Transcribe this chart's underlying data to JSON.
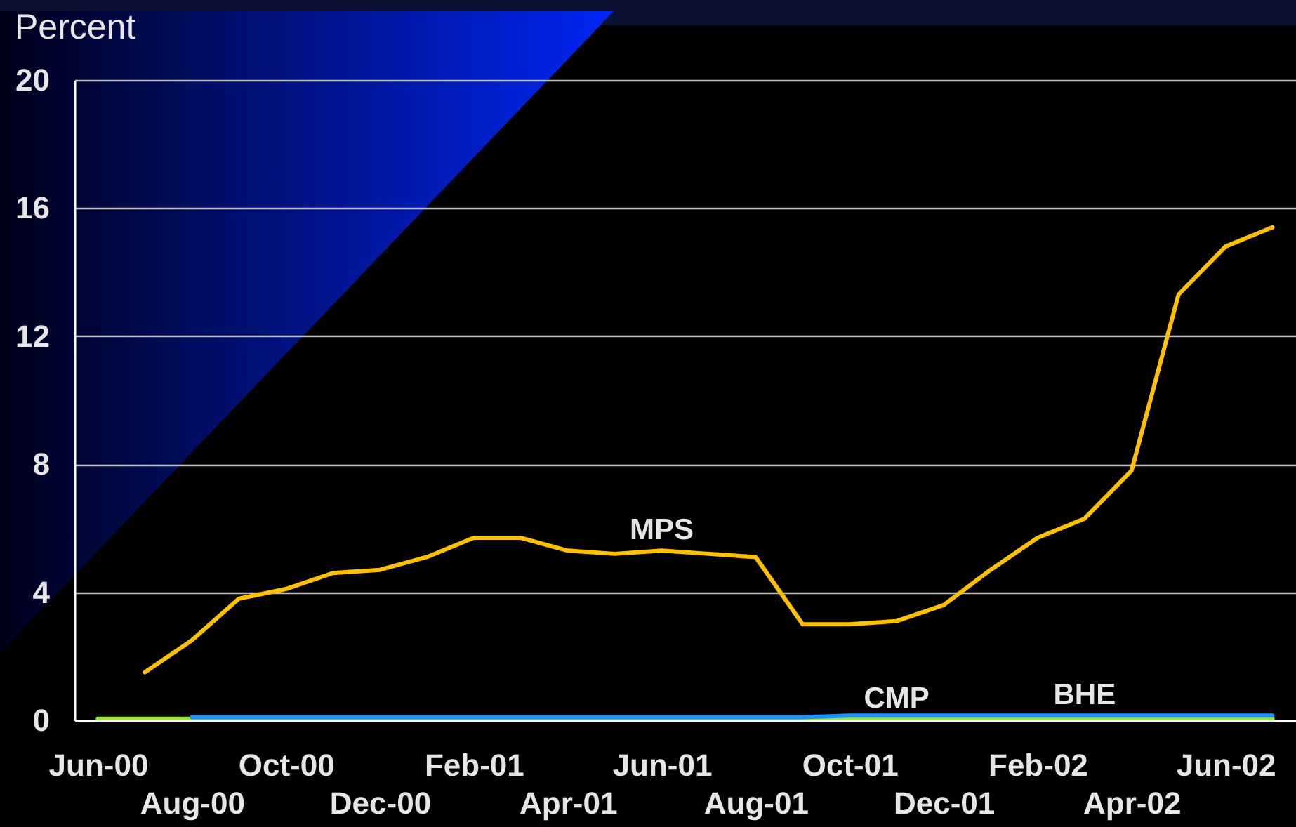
{
  "chart_data": {
    "type": "line",
    "ylabel": "Percent",
    "categories": [
      "Jun-00",
      null,
      "Aug-00",
      null,
      "Oct-00",
      null,
      "Dec-00",
      null,
      "Feb-01",
      null,
      "Apr-01",
      null,
      "Jun-01",
      null,
      "Aug-01",
      null,
      "Oct-01",
      null,
      "Dec-01",
      null,
      "Feb-02",
      null,
      "Apr-02",
      null,
      "Jun-02",
      null
    ],
    "series": [
      {
        "name": "MPS",
        "color": "#ffc000",
        "values": [
          null,
          1.5,
          2.5,
          3.8,
          4.1,
          4.6,
          4.7,
          5.1,
          5.7,
          5.7,
          5.3,
          5.2,
          5.3,
          5.2,
          5.1,
          3.0,
          3.0,
          3.1,
          3.6,
          4.7,
          5.7,
          6.3,
          7.8,
          13.3,
          14.8,
          15.4
        ]
      },
      {
        "name": "CMP",
        "color": "#99e52e",
        "values": [
          0.05,
          0.05,
          0.05,
          0.05,
          0.05,
          0.05,
          0.05,
          0.05,
          0.05,
          0.05,
          0.05,
          0.05,
          0.05,
          0.05,
          0.05,
          0.05,
          0.05,
          0.05,
          0.05,
          0.05,
          0.05,
          0.05,
          0.05,
          0.05,
          0.05,
          0.05
        ]
      },
      {
        "name": "BHE",
        "color": "#1e90ff",
        "values": [
          null,
          null,
          0.1,
          0.1,
          0.1,
          0.1,
          0.1,
          0.1,
          0.1,
          0.1,
          0.1,
          0.1,
          0.1,
          0.1,
          0.1,
          0.1,
          0.15,
          0.15,
          0.15,
          0.15,
          0.15,
          0.15,
          0.15,
          0.15,
          0.15,
          0.15
        ]
      }
    ],
    "ylim": [
      0,
      20
    ],
    "yticks": [
      0,
      4,
      8,
      12,
      16,
      20
    ],
    "grid": "y",
    "line_style": "solid"
  }
}
